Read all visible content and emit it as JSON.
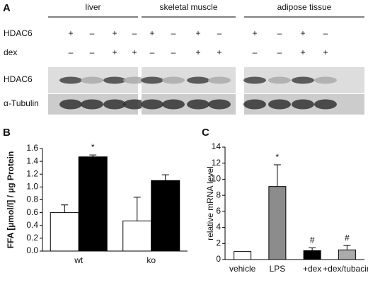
{
  "panel_a": {
    "label": "A",
    "tissues": [
      "liver",
      "skeletal muscle",
      "adipose tissue"
    ],
    "rows": [
      {
        "name": "HDAC6",
        "signs": [
          "+",
          "–",
          "+",
          "–"
        ]
      },
      {
        "name": "dex",
        "signs": [
          "–",
          "–",
          "+",
          "+"
        ]
      }
    ],
    "blots": [
      "HDAC6",
      "α-Tubulin"
    ]
  },
  "chart_data": [
    {
      "type": "bar",
      "panel": "B",
      "ylabel": "FFA [µmol/l] / µg Protein",
      "categories": [
        "wt",
        "ko"
      ],
      "series": [
        {
          "color": "#ffffff",
          "values": [
            0.6,
            0.47
          ],
          "errors": [
            0.12,
            0.37
          ]
        },
        {
          "color": "#000000",
          "values": [
            1.47,
            1.1
          ],
          "errors": [
            0.03,
            0.09
          ],
          "annotations": [
            "*",
            null
          ]
        }
      ],
      "ylim": [
        0,
        1.6
      ],
      "yticks": [
        {
          "value": 0,
          "label": "0.0"
        },
        0.2,
        0.4,
        0.6,
        0.8,
        {
          "value": 1,
          "label": "1.0"
        },
        1.2,
        1.4,
        1.6
      ]
    },
    {
      "type": "bar",
      "panel": "C",
      "ylabel": "relative mRNA level",
      "categories": [
        "vehicle",
        "LPS",
        "+dex",
        "+dex/tubacin"
      ],
      "series": [
        {
          "colors": [
            "#ffffff",
            "#8c8c8c",
            "#000000",
            "#ababab"
          ],
          "values": [
            1,
            9.1,
            1.1,
            1.2
          ],
          "errors": [
            0,
            2.7,
            0.35,
            0.55
          ],
          "annotations": [
            null,
            "*",
            "#",
            "#"
          ]
        }
      ],
      "ylim": [
        0,
        14
      ],
      "yticks": [
        0,
        2,
        4,
        6,
        8,
        10,
        12,
        14
      ]
    }
  ]
}
